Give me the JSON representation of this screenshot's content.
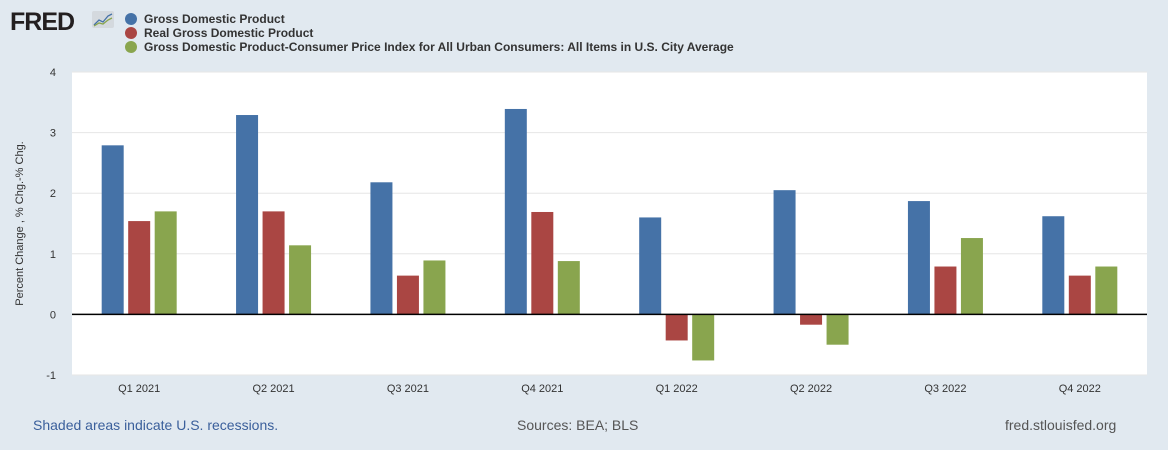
{
  "logo": "FRED",
  "chart_data": {
    "type": "bar",
    "title": "",
    "ylabel": "Percent Change , % Chg.-% Chg.",
    "xlabel": "",
    "ylim": [
      -1,
      4
    ],
    "yticks": [
      "4",
      "3",
      "2",
      "1",
      "0",
      "-1"
    ],
    "grid": true,
    "legend_position": "top-left",
    "categories": [
      "Q1 2021",
      "Q2 2021",
      "Q3 2021",
      "Q4 2021",
      "Q1 2022",
      "Q2 2022",
      "Q3 2022",
      "Q4 2022"
    ],
    "series": [
      {
        "name": "Gross Domestic Product",
        "color": "#4572a7",
        "values": [
          2.79,
          3.29,
          2.18,
          3.39,
          1.6,
          2.05,
          1.87,
          1.62
        ]
      },
      {
        "name": "Real Gross Domestic Product",
        "color": "#aa4643",
        "values": [
          1.54,
          1.7,
          0.64,
          1.69,
          -0.43,
          -0.17,
          0.79,
          0.64
        ]
      },
      {
        "name": "Gross Domestic Product-Consumer Price Index for All Urban Consumers: All Items in U.S. City Average",
        "color": "#89a54e",
        "values": [
          1.7,
          1.14,
          0.89,
          0.88,
          -0.76,
          -0.5,
          1.26,
          0.79
        ]
      }
    ]
  },
  "footer": {
    "recessions": "Shaded areas indicate U.S. recessions.",
    "sources": "Sources: BEA; BLS",
    "site": "fred.stlouisfed.org"
  }
}
